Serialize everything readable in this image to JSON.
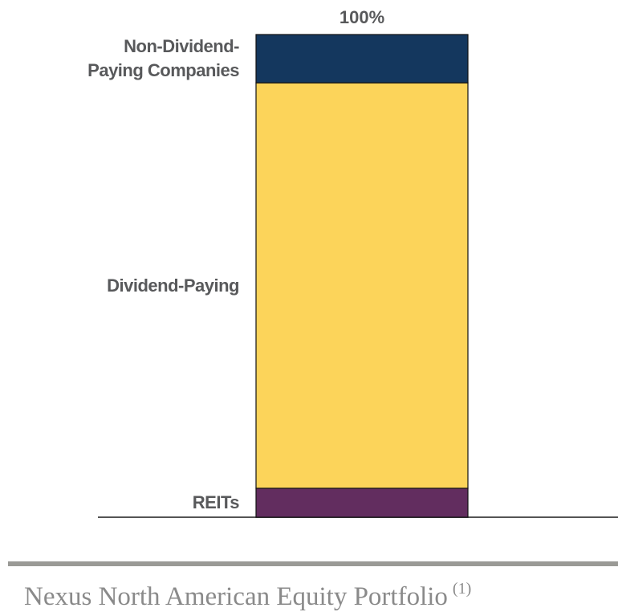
{
  "chart_data": {
    "type": "stacked_bar",
    "annotation": "100%",
    "series": [
      {
        "name": "REITs",
        "color": "#622d5f",
        "values": [
          6
        ]
      },
      {
        "name": "Dividend-Paying",
        "color": "#fcd45a",
        "values": [
          84
        ]
      },
      {
        "name": "Non-Dividend-Paying Companies",
        "color": "#14375e",
        "values": [
          10
        ]
      }
    ],
    "ylim": [
      0,
      100
    ]
  },
  "footer": {
    "title": "Nexus North American Equity Portfolio",
    "note_marker": "(1)"
  }
}
